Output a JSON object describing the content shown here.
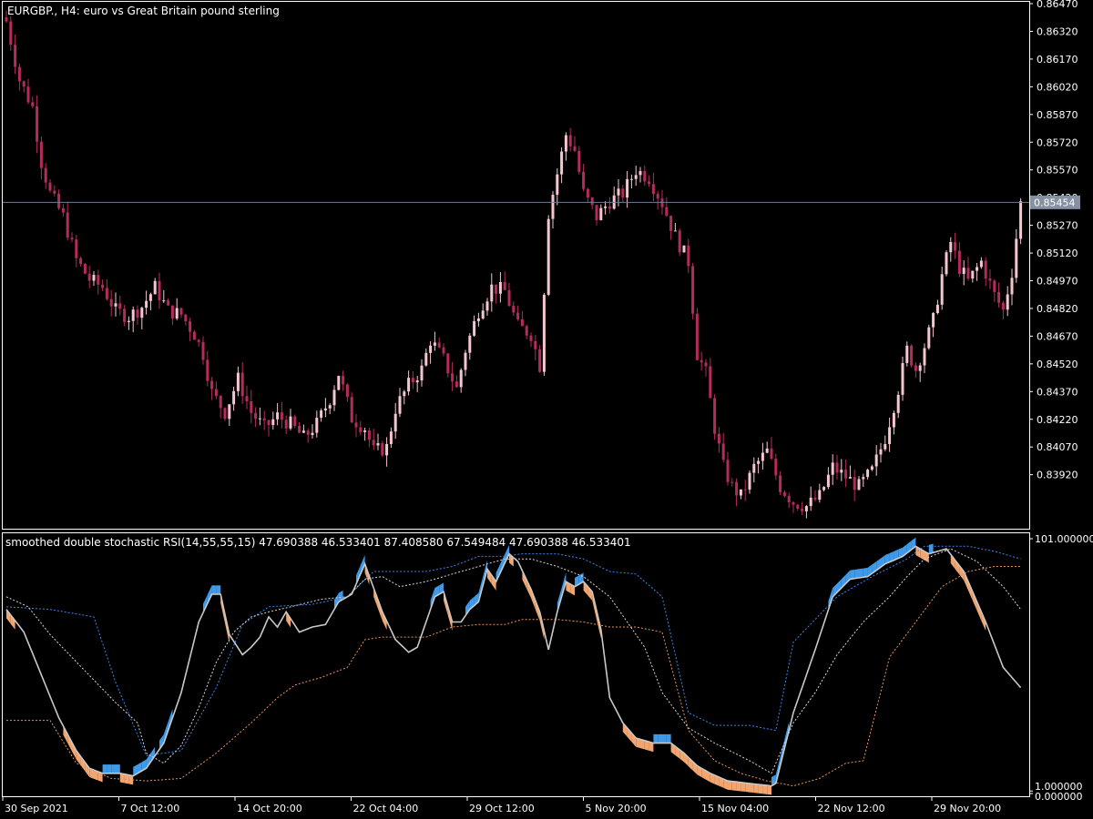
{
  "colors": {
    "background": "#000000",
    "frame": "#ffffff",
    "bull_candle": "#f5c6cf",
    "bear_candle": "#b32c5c",
    "current_price_line": "#6f7e94",
    "current_price_tag": "#8391a3",
    "rsi_line": "#c9c9c9",
    "fill_up": "#3f9bea",
    "fill_down": "#f3a56f",
    "upper_band": "#3a86e8",
    "lower_band": "#e8935a",
    "mid_band": "#d7d7d7"
  },
  "chart_data": [
    {
      "type": "candlestick",
      "title": "EURGBP., H4:  euro vs Great Britain pound sterling",
      "y_ticks": [
        "0.86470",
        "0.86320",
        "0.86170",
        "0.86020",
        "0.85870",
        "0.85720",
        "0.85570",
        "0.85420",
        "0.85270",
        "0.85120",
        "0.84970",
        "0.84820",
        "0.84670",
        "0.84520",
        "0.84370",
        "0.84220",
        "0.84070",
        "0.83920"
      ],
      "ylim": [
        0.8377,
        0.865
      ],
      "current_price": "0.85454",
      "close_path": [
        [
          0,
          0.8638
        ],
        [
          3,
          0.8608
        ],
        [
          6,
          0.8594
        ],
        [
          8,
          0.8566
        ],
        [
          10,
          0.855
        ],
        [
          13,
          0.8538
        ],
        [
          16,
          0.8516
        ],
        [
          19,
          0.8506
        ],
        [
          22,
          0.8502
        ],
        [
          25,
          0.849
        ],
        [
          28,
          0.8487
        ],
        [
          31,
          0.8492
        ],
        [
          34,
          0.8502
        ],
        [
          37,
          0.849
        ],
        [
          40,
          0.8488
        ],
        [
          43,
          0.8478
        ],
        [
          45,
          0.8468
        ],
        [
          47,
          0.8448
        ],
        [
          50,
          0.8438
        ],
        [
          53,
          0.8455
        ],
        [
          56,
          0.8438
        ],
        [
          59,
          0.843
        ],
        [
          62,
          0.8436
        ],
        [
          65,
          0.8432
        ],
        [
          68,
          0.8425
        ],
        [
          71,
          0.8432
        ],
        [
          74,
          0.8445
        ],
        [
          76,
          0.8458
        ],
        [
          79,
          0.8435
        ],
        [
          82,
          0.843
        ],
        [
          84,
          0.8418
        ],
        [
          87,
          0.842
        ],
        [
          89,
          0.844
        ],
        [
          92,
          0.8452
        ],
        [
          95,
          0.846
        ],
        [
          97,
          0.8475
        ],
        [
          100,
          0.8465
        ],
        [
          103,
          0.845
        ],
        [
          105,
          0.847
        ],
        [
          108,
          0.849
        ],
        [
          111,
          0.8502
        ],
        [
          114,
          0.85
        ],
        [
          117,
          0.8482
        ],
        [
          120,
          0.8478
        ],
        [
          122,
          0.8462
        ],
        [
          124,
          0.854
        ],
        [
          126,
          0.856
        ],
        [
          128,
          0.858
        ],
        [
          130,
          0.8572
        ],
        [
          132,
          0.855
        ],
        [
          135,
          0.8538
        ],
        [
          138,
          0.8546
        ],
        [
          141,
          0.855
        ],
        [
          144,
          0.8562
        ],
        [
          147,
          0.8558
        ],
        [
          150,
          0.8545
        ],
        [
          153,
          0.8528
        ],
        [
          156,
          0.8515
        ],
        [
          158,
          0.8468
        ],
        [
          160,
          0.8458
        ],
        [
          162,
          0.843
        ],
        [
          164,
          0.841
        ],
        [
          166,
          0.84
        ],
        [
          168,
          0.8395
        ],
        [
          171,
          0.841
        ],
        [
          174,
          0.8418
        ],
        [
          177,
          0.84
        ],
        [
          180,
          0.8392
        ],
        [
          183,
          0.839
        ],
        [
          186,
          0.8395
        ],
        [
          189,
          0.841
        ],
        [
          192,
          0.8405
        ],
        [
          195,
          0.84
        ],
        [
          198,
          0.8408
        ],
        [
          201,
          0.8425
        ],
        [
          204,
          0.845
        ],
        [
          206,
          0.847
        ],
        [
          208,
          0.846
        ],
        [
          210,
          0.8472
        ],
        [
          212,
          0.8485
        ],
        [
          214,
          0.8508
        ],
        [
          216,
          0.8525
        ],
        [
          218,
          0.8512
        ],
        [
          220,
          0.8505
        ],
        [
          223,
          0.8515
        ],
        [
          226,
          0.8498
        ],
        [
          228,
          0.849
        ],
        [
          230,
          0.851
        ],
        [
          232,
          0.8545
        ]
      ]
    },
    {
      "type": "line",
      "title": "smoothed double stochastic RSI(14,55,55,15) 47.690388 46.533401 87.408580 67.549484 47.690388 46.533401",
      "y_ticks": [
        "101.000000",
        "1.000000",
        "0.000000"
      ],
      "ylim": [
        0,
        101
      ],
      "series": [
        {
          "role": "main",
          "points": [
            [
              0,
              73
            ],
            [
              4,
              64
            ],
            [
              8,
              47
            ],
            [
              12,
              30
            ],
            [
              16,
              17
            ],
            [
              19,
              10
            ],
            [
              22,
              8
            ],
            [
              26,
              8
            ],
            [
              29,
              7
            ],
            [
              32,
              10
            ],
            [
              36,
              20
            ],
            [
              40,
              40
            ],
            [
              44,
              68
            ],
            [
              47,
              79
            ],
            [
              49,
              79
            ],
            [
              51,
              63
            ],
            [
              54,
              55
            ],
            [
              56,
              58
            ],
            [
              58,
              62
            ],
            [
              60,
              70
            ],
            [
              62,
              66
            ],
            [
              64,
              72
            ],
            [
              67,
              64
            ],
            [
              70,
              66
            ],
            [
              73,
              67
            ],
            [
              76,
              76
            ],
            [
              79,
              79
            ],
            [
              82,
              91
            ],
            [
              86,
              72
            ],
            [
              89,
              61
            ],
            [
              92,
              56
            ],
            [
              94,
              58
            ],
            [
              96,
              68
            ],
            [
              98,
              78
            ],
            [
              100,
              80
            ],
            [
              102,
              68
            ],
            [
              104,
              68
            ],
            [
              106,
              73
            ],
            [
              108,
              76
            ],
            [
              110,
              89
            ],
            [
              112,
              84
            ],
            [
              115,
              95
            ],
            [
              117,
              92
            ],
            [
              120,
              81
            ],
            [
              122,
              72
            ],
            [
              124,
              57
            ],
            [
              126,
              72
            ],
            [
              128,
              84
            ],
            [
              130,
              82
            ],
            [
              132,
              84
            ],
            [
              134,
              80
            ],
            [
              136,
              65
            ],
            [
              138,
              38
            ],
            [
              141,
              28
            ],
            [
              144,
              22
            ],
            [
              148,
              20
            ],
            [
              152,
              20
            ],
            [
              155,
              16
            ],
            [
              158,
              11
            ],
            [
              161,
              8
            ],
            [
              165,
              5
            ],
            [
              170,
              4
            ],
            [
              175,
              3
            ],
            [
              176,
              4
            ],
            [
              180,
              32
            ],
            [
              185,
              57
            ],
            [
              189,
              78
            ],
            [
              193,
              85
            ],
            [
              197,
              86
            ],
            [
              201,
              91
            ],
            [
              205,
              94
            ],
            [
              208,
              98
            ],
            [
              211,
              95
            ],
            [
              215,
              97
            ],
            [
              219,
              88
            ],
            [
              224,
              68
            ],
            [
              228,
              50
            ],
            [
              232,
              42
            ]
          ]
        },
        {
          "role": "slow",
          "points": [
            [
              0,
              78
            ],
            [
              5,
              74
            ],
            [
              10,
              63
            ],
            [
              15,
              54
            ],
            [
              20,
              45
            ],
            [
              25,
              36
            ],
            [
              30,
              28
            ],
            [
              32,
              16
            ],
            [
              36,
              12
            ],
            [
              40,
              19
            ],
            [
              44,
              34
            ],
            [
              48,
              52
            ],
            [
              52,
              64
            ],
            [
              56,
              70
            ],
            [
              60,
              72
            ],
            [
              65,
              74
            ],
            [
              72,
              77
            ],
            [
              78,
              78
            ],
            [
              82,
              85
            ],
            [
              86,
              86
            ],
            [
              90,
              82
            ],
            [
              96,
              84
            ],
            [
              102,
              87
            ],
            [
              108,
              90
            ],
            [
              114,
              93
            ],
            [
              120,
              93
            ],
            [
              126,
              90
            ],
            [
              132,
              86
            ],
            [
              138,
              78
            ],
            [
              142,
              68
            ],
            [
              146,
              58
            ],
            [
              150,
              40
            ],
            [
              156,
              26
            ],
            [
              162,
              20
            ],
            [
              170,
              13
            ],
            [
              175,
              8
            ],
            [
              180,
              28
            ],
            [
              185,
              40
            ],
            [
              190,
              55
            ],
            [
              196,
              68
            ],
            [
              202,
              78
            ],
            [
              206,
              86
            ],
            [
              210,
              93
            ],
            [
              216,
              97
            ],
            [
              222,
              92
            ],
            [
              228,
              82
            ],
            [
              232,
              73
            ]
          ]
        },
        {
          "role": "upper",
          "points": [
            [
              0,
              74
            ],
            [
              10,
              73
            ],
            [
              20,
              70
            ],
            [
              25,
              44
            ],
            [
              32,
              15
            ],
            [
              40,
              17
            ],
            [
              48,
              42
            ],
            [
              54,
              67
            ],
            [
              60,
              74
            ],
            [
              70,
              75
            ],
            [
              78,
              78
            ],
            [
              84,
              88
            ],
            [
              96,
              88
            ],
            [
              102,
              90
            ],
            [
              108,
              94
            ],
            [
              114,
              94
            ],
            [
              118,
              95
            ],
            [
              126,
              95
            ],
            [
              132,
              93
            ],
            [
              138,
              88
            ],
            [
              144,
              87
            ],
            [
              150,
              78
            ],
            [
              156,
              32
            ],
            [
              162,
              27
            ],
            [
              170,
              27
            ],
            [
              176,
              25
            ],
            [
              180,
              60
            ],
            [
              190,
              78
            ],
            [
              198,
              86
            ],
            [
              206,
              93
            ],
            [
              210,
              98
            ],
            [
              220,
              98
            ],
            [
              226,
              96
            ],
            [
              232,
              93
            ]
          ]
        },
        {
          "role": "lower",
          "points": [
            [
              0,
              29
            ],
            [
              10,
              29
            ],
            [
              16,
              12
            ],
            [
              24,
              6
            ],
            [
              32,
              5
            ],
            [
              40,
              6
            ],
            [
              48,
              16
            ],
            [
              56,
              28
            ],
            [
              62,
              38
            ],
            [
              66,
              43
            ],
            [
              72,
              46
            ],
            [
              78,
              50
            ],
            [
              82,
              61
            ],
            [
              86,
              62
            ],
            [
              96,
              62
            ],
            [
              102,
              66
            ],
            [
              108,
              67
            ],
            [
              114,
              67
            ],
            [
              118,
              69
            ],
            [
              126,
              69
            ],
            [
              132,
              68
            ],
            [
              138,
              66
            ],
            [
              144,
              66
            ],
            [
              150,
              64
            ],
            [
              156,
              25
            ],
            [
              162,
              13
            ],
            [
              168,
              8
            ],
            [
              174,
              5
            ],
            [
              180,
              3
            ],
            [
              186,
              6
            ],
            [
              192,
              12
            ],
            [
              196,
              13
            ],
            [
              202,
              54
            ],
            [
              208,
              68
            ],
            [
              214,
              82
            ],
            [
              220,
              88
            ],
            [
              226,
              90
            ],
            [
              232,
              90
            ]
          ]
        }
      ]
    }
  ],
  "x_axis_labels": [
    "30 Sep 2021",
    "7 Oct 12:00",
    "14 Oct 20:00",
    "22 Oct 04:00",
    "29 Oct 12:00",
    "5 Nov 20:00",
    "15 Nov 04:00",
    "22 Nov 12:00",
    "29 Nov 20:00"
  ]
}
